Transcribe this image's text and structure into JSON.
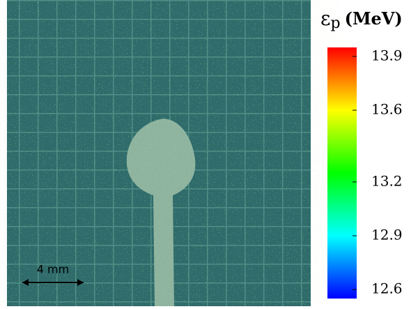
{
  "chart_data": {
    "type": "image-colorbar",
    "colorbar": {
      "symbol": "ε",
      "subscript": "p",
      "unit": "(MeV)",
      "clim": [
        12.55,
        13.95
      ],
      "ticks": [
        13.9,
        13.6,
        13.2,
        12.9,
        12.6
      ],
      "colors": [
        "#0000ff",
        "#00ffff",
        "#00ff00",
        "#ffff00",
        "#ff0000"
      ]
    },
    "scale_bar": "4 mm"
  }
}
